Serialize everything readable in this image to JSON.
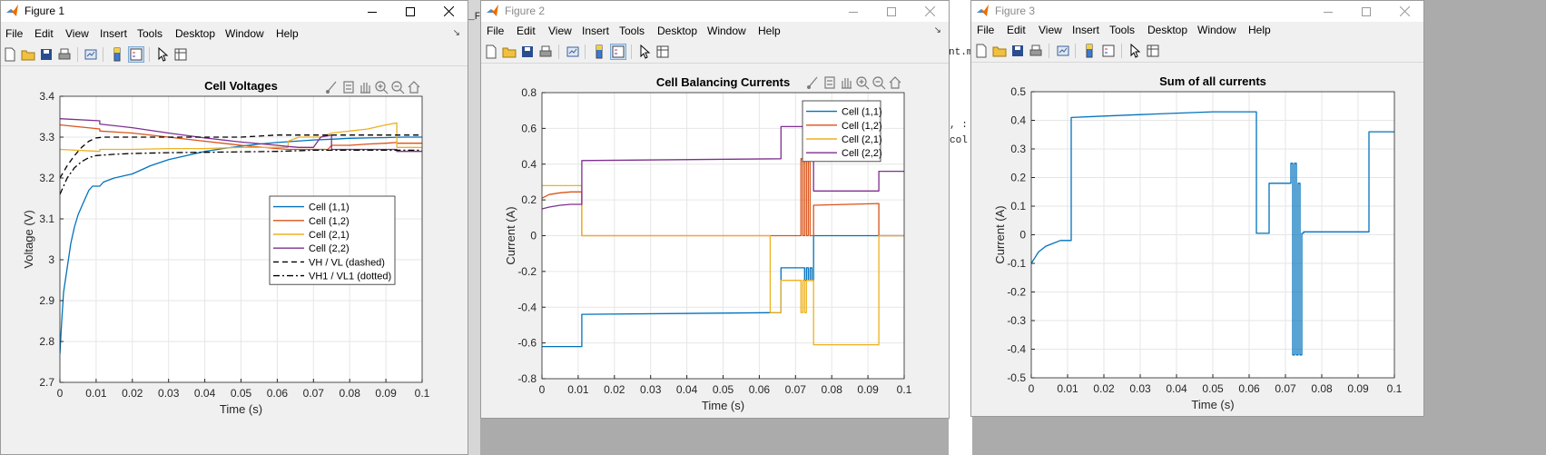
{
  "menu_items": [
    "File",
    "Edit",
    "View",
    "Insert",
    "Tools",
    "Desktop",
    "Window",
    "Help"
  ],
  "background": {
    "file_tab_left": "_Fil",
    "file_tab_right": "nt.m",
    "code_line_1": ", :",
    "code_line_2": "col"
  },
  "figures": [
    {
      "title": "Figure 1",
      "active": true,
      "chart_data": {
        "type": "line",
        "title": "Cell Voltages",
        "xlabel": "Time (s)",
        "ylabel": "Voltage (V)",
        "xlim": [
          0,
          0.1
        ],
        "ylim": [
          2.7,
          3.4
        ],
        "xticks": [
          0,
          0.01,
          0.02,
          0.03,
          0.04,
          0.05,
          0.06,
          0.07,
          0.08,
          0.09,
          0.1
        ],
        "xtick_labels": [
          "0",
          "0.01",
          "0.02",
          "0.03",
          "0.04",
          "0.05",
          "0.06",
          "0.07",
          "0.08",
          "0.09",
          "0.1"
        ],
        "yticks": [
          2.7,
          2.8,
          2.9,
          3.0,
          3.1,
          3.2,
          3.3,
          3.4
        ],
        "ytick_labels": [
          "2.7",
          "2.8",
          "2.9",
          "3",
          "3.1",
          "3.2",
          "3.3",
          "3.4"
        ],
        "grid": true,
        "legend_position": "center-right",
        "series": [
          {
            "name": "Cell (1,1)",
            "color": "#0072BD",
            "dash": "solid",
            "x": [
              0,
              0.0005,
              0.001,
              0.002,
              0.003,
              0.004,
              0.005,
              0.006,
              0.007,
              0.008,
              0.009,
              0.01,
              0.011,
              0.012,
              0.015,
              0.02,
              0.025,
              0.03,
              0.035,
              0.04,
              0.045,
              0.05,
              0.055,
              0.06,
              0.065,
              0.07,
              0.075,
              0.08,
              0.085,
              0.09,
              0.095,
              0.1
            ],
            "y": [
              2.77,
              2.85,
              2.92,
              2.98,
              3.04,
              3.08,
              3.11,
              3.13,
              3.15,
              3.17,
              3.18,
              3.18,
              3.18,
              3.19,
              3.2,
              3.21,
              3.23,
              3.245,
              3.255,
              3.265,
              3.272,
              3.278,
              3.283,
              3.287,
              3.29,
              3.293,
              3.295,
              3.297,
              3.298,
              3.299,
              3.3,
              3.3
            ]
          },
          {
            "name": "Cell (1,2)",
            "color": "#D95319",
            "dash": "solid",
            "x": [
              0,
              0.011,
              0.011,
              0.02,
              0.03,
              0.04,
              0.05,
              0.06,
              0.063,
              0.066,
              0.07,
              0.072,
              0.073,
              0.074,
              0.075,
              0.08,
              0.085,
              0.09,
              0.093,
              0.093,
              0.1
            ],
            "y": [
              3.33,
              3.32,
              3.315,
              3.31,
              3.3,
              3.29,
              3.28,
              3.272,
              3.27,
              3.27,
              3.27,
              3.27,
              3.27,
              3.27,
              3.28,
              3.28,
              3.283,
              3.285,
              3.287,
              3.285,
              3.285
            ]
          },
          {
            "name": "Cell (2,1)",
            "color": "#EDB120",
            "dash": "solid",
            "x": [
              0,
              0.011,
              0.011,
              0.02,
              0.03,
              0.04,
              0.05,
              0.06,
              0.063,
              0.063,
              0.066,
              0.07,
              0.072,
              0.075,
              0.08,
              0.085,
              0.09,
              0.093,
              0.093,
              0.1
            ],
            "y": [
              3.27,
              3.265,
              3.27,
              3.27,
              3.272,
              3.272,
              3.275,
              3.275,
              3.275,
              3.29,
              3.3,
              3.3,
              3.3,
              3.31,
              3.315,
              3.32,
              3.33,
              3.335,
              3.275,
              3.275
            ]
          },
          {
            "name": "Cell (2,2)",
            "color": "#7E2F8E",
            "dash": "solid",
            "x": [
              0,
              0.011,
              0.011,
              0.02,
              0.03,
              0.04,
              0.05,
              0.06,
              0.063,
              0.066,
              0.07,
              0.072,
              0.075,
              0.075,
              0.08,
              0.085,
              0.09,
              0.093,
              0.093,
              0.1
            ],
            "y": [
              3.345,
              3.34,
              3.332,
              3.323,
              3.31,
              3.298,
              3.288,
              3.28,
              3.277,
              3.275,
              3.275,
              3.3,
              3.305,
              3.27,
              3.27,
              3.27,
              3.27,
              3.27,
              3.265,
              3.265
            ]
          },
          {
            "name": "VH / VL (dashed)",
            "color": "#000000",
            "dash": "dashed",
            "x": [
              0,
              0.002,
              0.004,
              0.006,
              0.008,
              0.01,
              0.012,
              0.015,
              0.02,
              0.03,
              0.04,
              0.05,
              0.06,
              0.07,
              0.08,
              0.09,
              0.1
            ],
            "y": [
              3.2,
              3.23,
              3.255,
              3.275,
              3.29,
              3.298,
              3.3,
              3.3,
              3.3,
              3.3,
              3.3,
              3.3,
              3.305,
              3.305,
              3.305,
              3.305,
              3.305
            ]
          },
          {
            "name": "VH1 / VL1 (dotted)",
            "color": "#000000",
            "dash": "dashdot",
            "x": [
              0,
              0.002,
              0.004,
              0.006,
              0.008,
              0.01,
              0.015,
              0.02,
              0.03,
              0.04,
              0.05,
              0.06,
              0.07,
              0.08,
              0.09,
              0.1
            ],
            "y": [
              3.16,
              3.2,
              3.225,
              3.24,
              3.25,
              3.255,
              3.258,
              3.26,
              3.262,
              3.263,
              3.264,
              3.265,
              3.268,
              3.268,
              3.268,
              3.268
            ]
          }
        ]
      }
    },
    {
      "title": "Figure 2",
      "active": false,
      "chart_data": {
        "type": "line",
        "title": "Cell Balancing Currents",
        "xlabel": "Time (s)",
        "ylabel": "Current (A)",
        "xlim": [
          0,
          0.1
        ],
        "ylim": [
          -0.8,
          0.8
        ],
        "xticks": [
          0,
          0.01,
          0.02,
          0.03,
          0.04,
          0.05,
          0.06,
          0.07,
          0.08,
          0.09,
          0.1
        ],
        "xtick_labels": [
          "0",
          "0.01",
          "0.02",
          "0.03",
          "0.04",
          "0.05",
          "0.06",
          "0.07",
          "0.08",
          "0.09",
          "0.1"
        ],
        "yticks": [
          -0.8,
          -0.6,
          -0.4,
          -0.2,
          0,
          0.2,
          0.4,
          0.6,
          0.8
        ],
        "ytick_labels": [
          "-0.8",
          "-0.6",
          "-0.4",
          "-0.2",
          "0",
          "0.2",
          "0.4",
          "0.6",
          "0.8"
        ],
        "grid": true,
        "legend_position": "top-right",
        "series": [
          {
            "name": "Cell (1,1)",
            "color": "#0072BD",
            "dash": "solid",
            "x": [
              0,
              0.011,
              0.011,
              0.066,
              0.066,
              0.0725,
              0.0725,
              0.073,
              0.073,
              0.0735,
              0.0735,
              0.074,
              0.074,
              0.0745,
              0.0745,
              0.075,
              0.075,
              0.1
            ],
            "y": [
              -0.62,
              -0.62,
              -0.44,
              -0.43,
              -0.18,
              -0.18,
              -0.25,
              -0.25,
              -0.18,
              -0.18,
              -0.25,
              -0.25,
              -0.18,
              -0.18,
              -0.25,
              -0.25,
              0.0,
              0.0
            ]
          },
          {
            "name": "Cell (1,2)",
            "color": "#D95319",
            "dash": "solid",
            "x": [
              0,
              0.002,
              0.005,
              0.008,
              0.011,
              0.011,
              0.066,
              0.066,
              0.0715,
              0.0715,
              0.072,
              0.072,
              0.0725,
              0.0725,
              0.073,
              0.073,
              0.0735,
              0.0735,
              0.074,
              0.074,
              0.075,
              0.075,
              0.093,
              0.093,
              0.1
            ],
            "y": [
              0.21,
              0.23,
              0.24,
              0.245,
              0.245,
              0.0,
              0.0,
              0.0,
              0.0,
              0.43,
              0.43,
              0.0,
              0.0,
              0.43,
              0.43,
              0.0,
              0.0,
              0.43,
              0.43,
              0.0,
              0.0,
              0.17,
              0.18,
              0.0,
              0.0
            ]
          },
          {
            "name": "Cell (2,1)",
            "color": "#EDB120",
            "dash": "solid",
            "x": [
              0,
              0.011,
              0.011,
              0.063,
              0.063,
              0.066,
              0.066,
              0.0715,
              0.0715,
              0.072,
              0.072,
              0.0725,
              0.0725,
              0.073,
              0.073,
              0.075,
              0.075,
              0.093,
              0.093,
              0.1
            ],
            "y": [
              0.28,
              0.28,
              0.0,
              0.0,
              -0.43,
              -0.43,
              -0.25,
              -0.25,
              -0.43,
              -0.43,
              -0.25,
              -0.25,
              -0.43,
              -0.43,
              -0.25,
              -0.25,
              -0.61,
              -0.61,
              0.0,
              0.0
            ]
          },
          {
            "name": "Cell (2,2)",
            "color": "#7E2F8E",
            "dash": "solid",
            "x": [
              0,
              0.002,
              0.005,
              0.008,
              0.011,
              0.011,
              0.066,
              0.066,
              0.075,
              0.075,
              0.093,
              0.093,
              0.1
            ],
            "y": [
              0.15,
              0.16,
              0.17,
              0.175,
              0.175,
              0.42,
              0.43,
              0.61,
              0.61,
              0.25,
              0.25,
              0.36,
              0.36
            ]
          }
        ]
      }
    },
    {
      "title": "Figure 3",
      "active": false,
      "chart_data": {
        "type": "line",
        "title": "Sum of all currents",
        "xlabel": "Time (s)",
        "ylabel": "Current (A)",
        "xlim": [
          0,
          0.1
        ],
        "ylim": [
          -0.5,
          0.5
        ],
        "xticks": [
          0,
          0.01,
          0.02,
          0.03,
          0.04,
          0.05,
          0.06,
          0.07,
          0.08,
          0.09,
          0.1
        ],
        "xtick_labels": [
          "0",
          "0.01",
          "0.02",
          "0.03",
          "0.04",
          "0.05",
          "0.06",
          "0.07",
          "0.08",
          "0.09",
          "0.1"
        ],
        "yticks": [
          -0.5,
          -0.4,
          -0.3,
          -0.2,
          -0.1,
          0,
          0.1,
          0.2,
          0.3,
          0.4,
          0.5
        ],
        "ytick_labels": [
          "-0.5",
          "-0.4",
          "-0.3",
          "-0.2",
          "-0.1",
          "0",
          "0.1",
          "0.2",
          "0.3",
          "0.4",
          "0.5"
        ],
        "grid": true,
        "legend_position": "none",
        "series": [
          {
            "name": "",
            "color": "#0072BD",
            "dash": "solid",
            "x": [
              0,
              0.001,
              0.002,
              0.004,
              0.006,
              0.008,
              0.01,
              0.011,
              0.011,
              0.02,
              0.03,
              0.04,
              0.05,
              0.062,
              0.062,
              0.0655,
              0.0655,
              0.0715,
              0.0715,
              0.072,
              0.072,
              0.0725,
              0.0725,
              0.073,
              0.073,
              0.0735,
              0.0735,
              0.074,
              0.074,
              0.0745,
              0.0745,
              0.075,
              0.075,
              0.093,
              0.093,
              0.1
            ],
            "y": [
              -0.1,
              -0.08,
              -0.06,
              -0.04,
              -0.03,
              -0.02,
              -0.02,
              -0.02,
              0.41,
              0.415,
              0.42,
              0.425,
              0.43,
              0.43,
              0.005,
              0.005,
              0.18,
              0.18,
              0.25,
              0.25,
              -0.42,
              -0.42,
              0.25,
              0.25,
              -0.42,
              -0.42,
              0.18,
              0.18,
              -0.42,
              -0.42,
              0.005,
              0.005,
              0.01,
              0.01,
              0.36,
              0.36
            ]
          }
        ]
      }
    }
  ]
}
